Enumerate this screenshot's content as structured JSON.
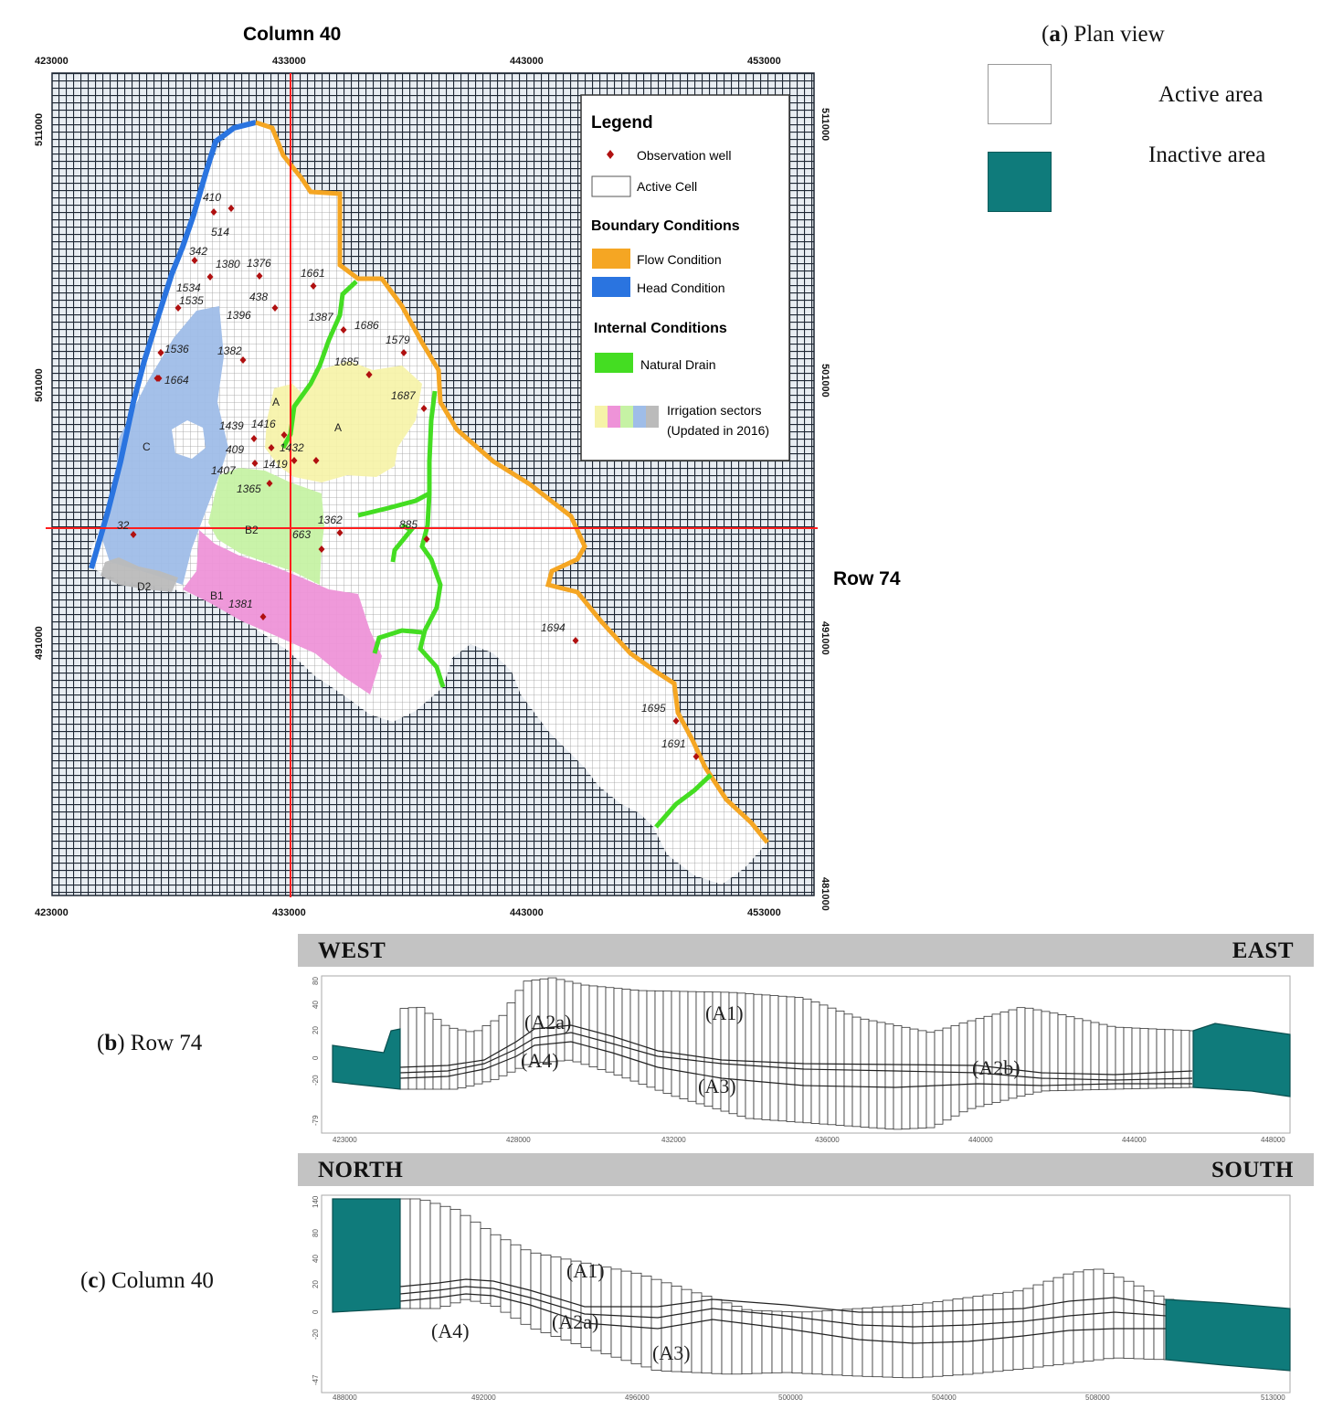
{
  "plan": {
    "column_label": "Column 40",
    "row_label": "Row 74",
    "x_ticks": [
      "423000",
      "433000",
      "443000",
      "453000"
    ],
    "y_ticks": [
      "511000",
      "501000",
      "491000",
      "481000"
    ]
  },
  "legend": {
    "title": "Legend",
    "observation_well": "Observation well",
    "active_cell": "Active Cell",
    "boundary_title": "Boundary Conditions",
    "flow_condition": "Flow Condition",
    "head_condition": "Head Condition",
    "internal_title": "Internal Conditions",
    "natural_drain": "Natural  Drain",
    "irrigation_1": "Irrigation sectors",
    "irrigation_2": "(Updated in 2016)"
  },
  "colors": {
    "flow": "#f5a623",
    "head": "#2a74e0",
    "drain": "#44dd22",
    "inactive": "#0f7b7b",
    "sector_a": "#f6f3a8",
    "sector_b1": "#ee93d8",
    "sector_b2": "#c6f2a4",
    "sector_c": "#9fbde8",
    "sector_d2": "#bbbbbb",
    "section_line": "#ff1e1e"
  },
  "sectors": [
    "A",
    "A",
    "C",
    "B2",
    "B1",
    "D2"
  ],
  "wells": [
    "410",
    "514",
    "342",
    "1380",
    "1376",
    "1661",
    "1534",
    "438",
    "1535",
    "1396",
    "1387",
    "1686",
    "1579",
    "1536",
    "1382",
    "1685",
    "1664",
    "1687",
    "1439",
    "1416",
    "409",
    "1432",
    "1407",
    "1419",
    "1365",
    "32",
    "1362",
    "885",
    "663",
    "1381",
    "1694",
    "1695",
    "1691"
  ],
  "plan_key": {
    "title_letter": "a",
    "title_rest": ") Plan view",
    "active": "Active area",
    "inactive": "Inactive area"
  },
  "section_b": {
    "label_letter": "b",
    "label_rest": ") Row 74",
    "left": "WEST",
    "right": "EAST",
    "units": [
      "(A1)",
      "(A2a)",
      "(A4)",
      "(A3)",
      "(A2b)"
    ],
    "x_ticks": [
      "423000",
      "428000",
      "432000",
      "436000",
      "440000",
      "444000",
      "448000"
    ],
    "y_ticks": [
      "80",
      "40",
      "20",
      "0",
      "-20",
      "-79"
    ]
  },
  "section_c": {
    "label_letter": "c",
    "label_rest": ") Column 40",
    "left": "NORTH",
    "right": "SOUTH",
    "units": [
      "(A1)",
      "(A2a)",
      "(A4)",
      "(A3)"
    ],
    "x_ticks": [
      "488000",
      "492000",
      "496000",
      "500000",
      "504000",
      "508000",
      "513000"
    ],
    "y_ticks": [
      "140",
      "80",
      "40",
      "20",
      "0",
      "-20",
      "-47"
    ]
  }
}
